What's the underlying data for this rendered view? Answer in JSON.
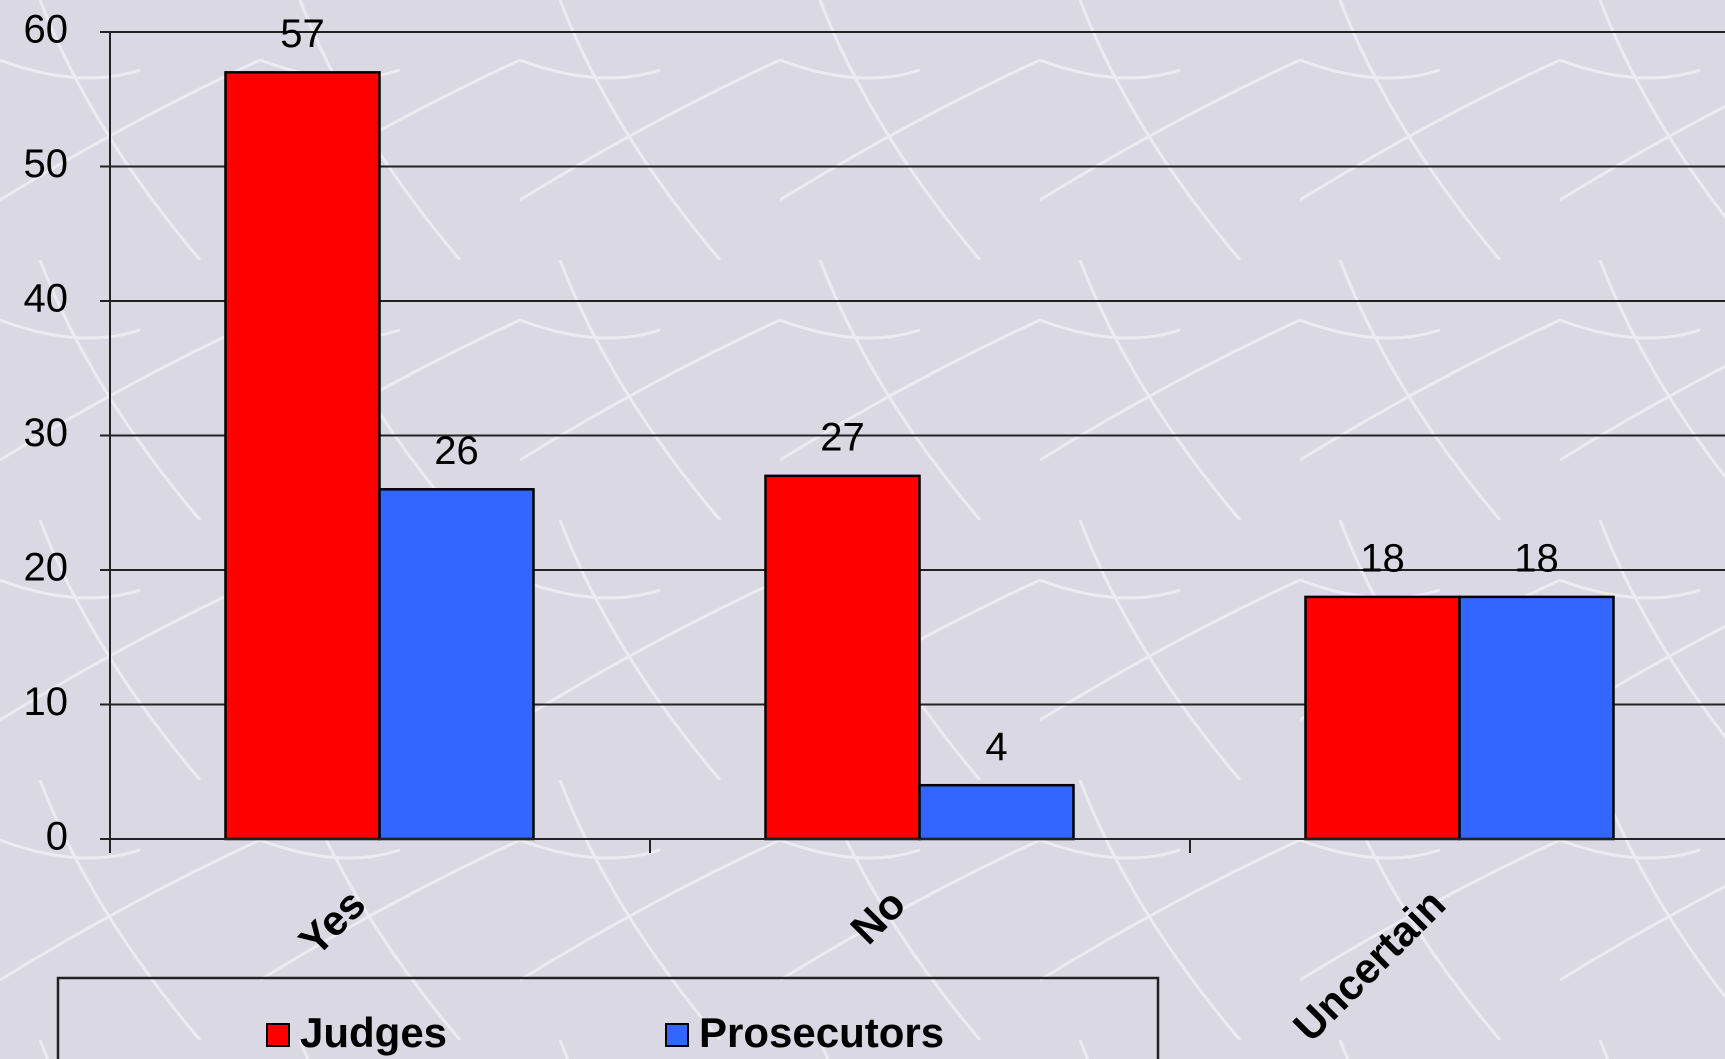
{
  "chart_data": {
    "type": "bar",
    "categories": [
      "Yes",
      "No",
      "Uncertain"
    ],
    "series": [
      {
        "name": "Judges",
        "color": "#ff0000",
        "values": [
          57,
          27,
          18
        ]
      },
      {
        "name": "Prosecutors",
        "color": "#3366ff",
        "values": [
          26,
          4,
          18
        ]
      }
    ],
    "ylim": [
      0,
      60
    ],
    "yticks": [
      0,
      10,
      20,
      30,
      40,
      50,
      60
    ],
    "grid": true,
    "legend": "bottom"
  }
}
